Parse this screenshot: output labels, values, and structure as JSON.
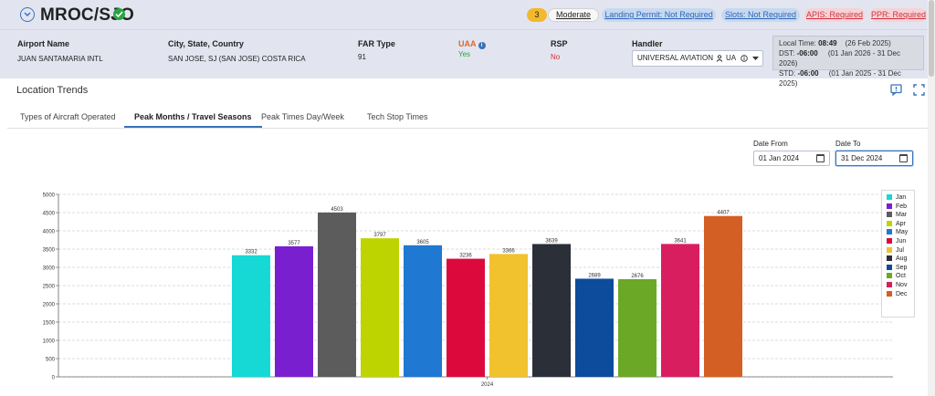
{
  "airport": {
    "code": "MROC/SJO",
    "risk_count": "3",
    "risk_label": "Moderate",
    "badges": {
      "landing_permit": "Landing Permit: Not Required",
      "slots": "Slots: Not Required",
      "apis": "APIS: Required",
      "ppr": "PPR: Required"
    },
    "fields": {
      "name_label": "Airport Name",
      "name_value": "JUAN SANTAMARIA INTL",
      "city_label": "City, State, Country",
      "city_value": "SAN JOSE, SJ (SAN JOSE) COSTA RICA",
      "far_label": "FAR Type",
      "far_value": "91",
      "uaa_label": "UAA",
      "uaa_value": "Yes",
      "rsp_label": "RSP",
      "rsp_value": "No",
      "handler_label": "Handler",
      "handler_value": "UNIVERSAL AVIATION",
      "handler_code": "UA"
    },
    "time": {
      "local_label": "Local Time:",
      "local_time": "08:49",
      "local_date": "(26 Feb 2025)",
      "dst_label": "DST:",
      "dst_offset": "-06:00",
      "dst_range": "(01 Jan 2026 - 31 Dec 2026)",
      "std_label": "STD:",
      "std_offset": "-06:00",
      "std_range": "(01 Jan 2025 - 31 Dec 2025)"
    }
  },
  "trends": {
    "title": "Location Trends",
    "tabs": [
      {
        "label": "Types of Aircraft Operated"
      },
      {
        "label": "Peak Months / Travel Seasons"
      },
      {
        "label": "Peak Times Day/Week"
      },
      {
        "label": "Tech Stop Times"
      }
    ],
    "active_tab": 1,
    "date_from_label": "Date From",
    "date_from": "01 Jan 2024",
    "date_to_label": "Date To",
    "date_to": "31 Dec 2024"
  },
  "colors": {
    "accent": "#3a72b8",
    "header_bg": "#e2e5f0"
  },
  "icons": {
    "collapse": "chevron-down-icon",
    "status": "check-circle-icon",
    "info": "info-icon",
    "comment": "comment-icon",
    "expand": "fullscreen-icon",
    "calendar": "calendar-icon",
    "person": "person-icon",
    "dropdown": "caret-down-icon"
  },
  "chart_data": {
    "type": "bar",
    "categories": [
      "2024"
    ],
    "ylim": [
      0,
      5000
    ],
    "yticks": [
      0,
      500,
      1000,
      1500,
      2000,
      2500,
      3000,
      3500,
      4000,
      4500,
      5000
    ],
    "grid": true,
    "legend_position": "right",
    "series": [
      {
        "name": "Jan",
        "values": [
          3332
        ],
        "color": "#16d9d6"
      },
      {
        "name": "Feb",
        "values": [
          3577
        ],
        "color": "#7a1fd0"
      },
      {
        "name": "Mar",
        "values": [
          4503
        ],
        "color": "#5c5c5c"
      },
      {
        "name": "Apr",
        "values": [
          3797
        ],
        "color": "#bdd400"
      },
      {
        "name": "May",
        "values": [
          3605
        ],
        "color": "#1f78d1"
      },
      {
        "name": "Jun",
        "values": [
          3236
        ],
        "color": "#dc0a3c"
      },
      {
        "name": "Jul",
        "values": [
          3366
        ],
        "color": "#f2c12e"
      },
      {
        "name": "Aug",
        "values": [
          3639
        ],
        "color": "#2a2f38"
      },
      {
        "name": "Sep",
        "values": [
          2689
        ],
        "color": "#0d4c9c"
      },
      {
        "name": "Oct",
        "values": [
          2676
        ],
        "color": "#6aa826"
      },
      {
        "name": "Nov",
        "values": [
          3641
        ],
        "color": "#d91e5f"
      },
      {
        "name": "Dec",
        "values": [
          4407
        ],
        "color": "#d35f24"
      }
    ]
  }
}
